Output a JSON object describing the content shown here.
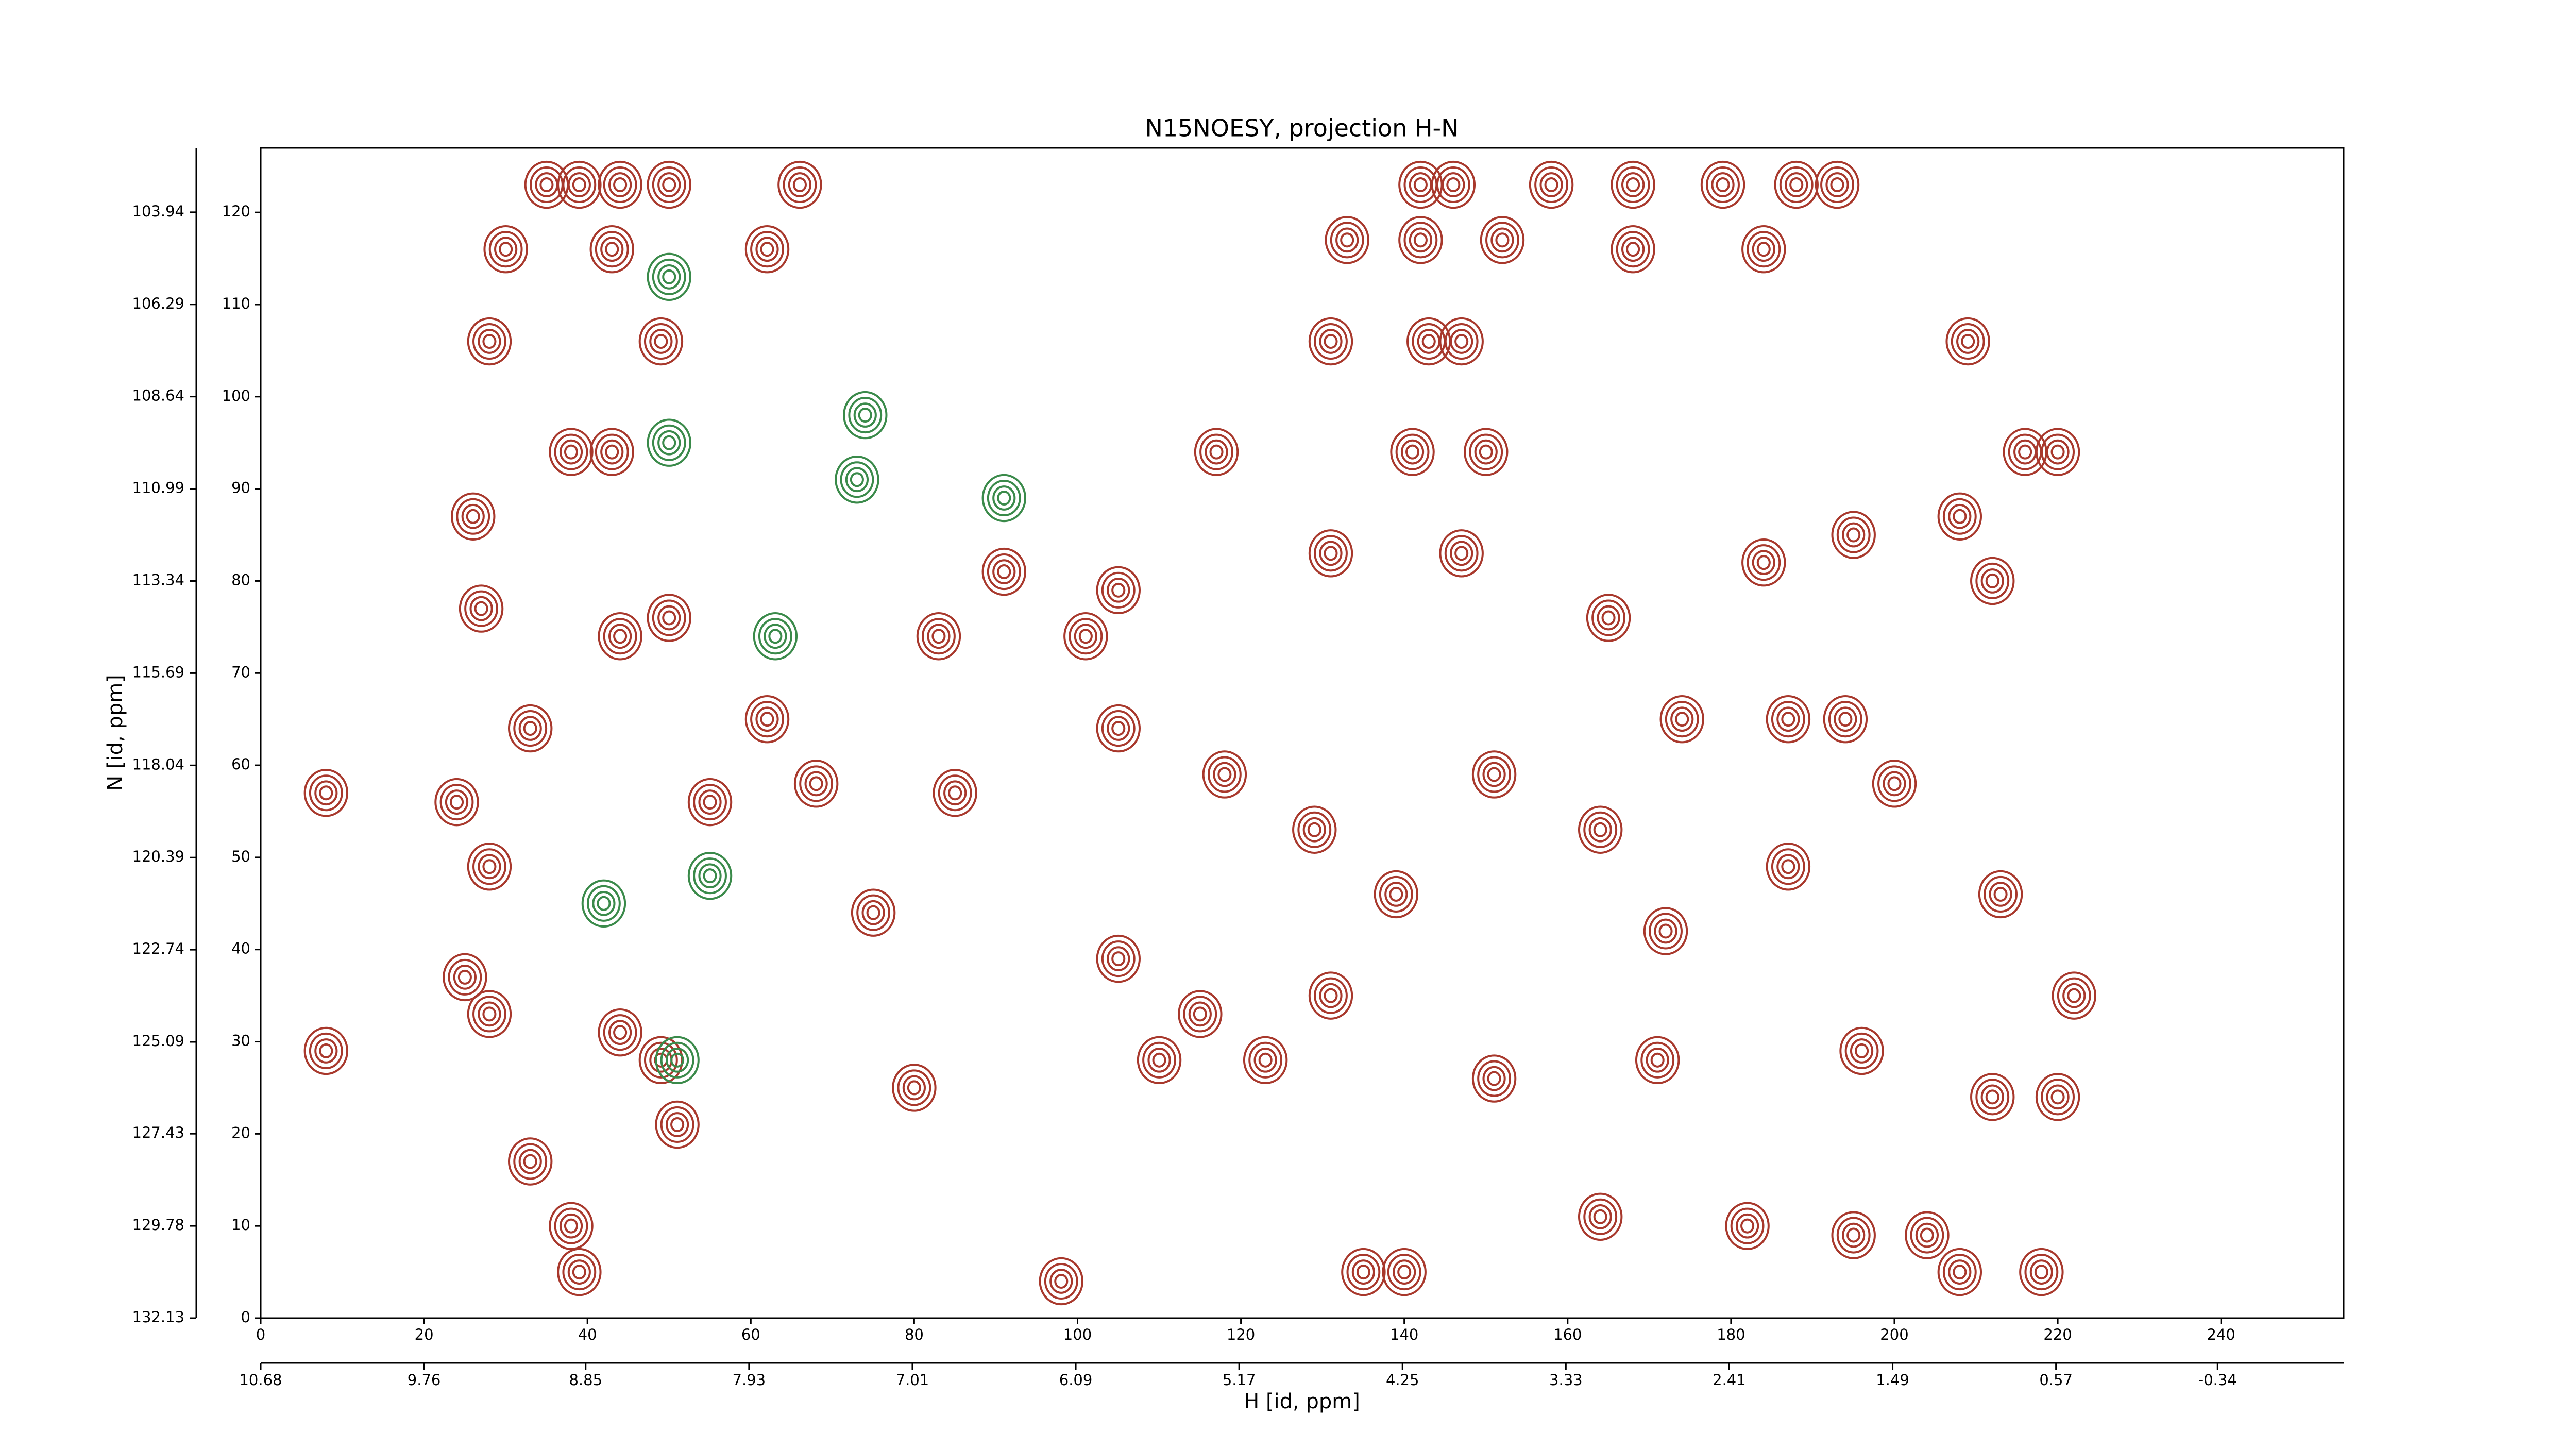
{
  "chart_data": {
    "type": "contour",
    "title": "N15NOESY, projection H-N",
    "x_label": "H [id, ppm]",
    "y_label": "N [id, ppm]",
    "xlim": [
      0,
      255
    ],
    "xticks": [
      0,
      20,
      40,
      60,
      80,
      100,
      120,
      140,
      160,
      180,
      200,
      220,
      240
    ],
    "ylim": [
      0,
      127
    ],
    "yticks": [
      0,
      10,
      20,
      30,
      40,
      50,
      60,
      70,
      80,
      90,
      100,
      110,
      120
    ],
    "x2lim": [
      10.68,
      -1.05
    ],
    "x2ticks": [
      10.68,
      9.76,
      8.85,
      7.93,
      7.01,
      6.09,
      5.17,
      4.25,
      3.33,
      2.41,
      1.49,
      0.57,
      -0.34
    ],
    "y2lim": [
      132.13,
      102.3
    ],
    "y2ticks": [
      103.94,
      106.29,
      108.64,
      110.99,
      113.34,
      115.69,
      118.04,
      120.39,
      122.74,
      125.09,
      127.43,
      129.78,
      132.13
    ],
    "series": [
      {
        "color": "#a8382c",
        "x": [
          35,
          39,
          44,
          50,
          66,
          142,
          146,
          158,
          168,
          179,
          188,
          193,
          30,
          43,
          62,
          133,
          142,
          152,
          168,
          184,
          28,
          49,
          131,
          143,
          147,
          209,
          38,
          43,
          117,
          141,
          150,
          216,
          220,
          26,
          208,
          91,
          105,
          27,
          44,
          50,
          83,
          101,
          33,
          62,
          105,
          174,
          187,
          194,
          24,
          8,
          55,
          68,
          85,
          28,
          75,
          105,
          25,
          28,
          44,
          49,
          8,
          115,
          110,
          80,
          51,
          33,
          38,
          164,
          182,
          39,
          135,
          140,
          208,
          218,
          195,
          204,
          118,
          129,
          139,
          151,
          164,
          172,
          187,
          200,
          213,
          222,
          196,
          171,
          151,
          131,
          123,
          212,
          220,
          131,
          147,
          165,
          184,
          195,
          212,
          98
        ],
        "y": [
          123,
          123,
          123,
          123,
          123,
          123,
          123,
          123,
          123,
          123,
          123,
          123,
          116,
          116,
          116,
          117,
          117,
          117,
          116,
          116,
          106,
          106,
          106,
          106,
          106,
          106,
          94,
          94,
          94,
          94,
          94,
          94,
          94,
          87,
          87,
          81,
          79,
          77,
          74,
          76,
          74,
          74,
          64,
          65,
          64,
          65,
          65,
          65,
          56,
          57,
          56,
          58,
          57,
          49,
          44,
          39,
          37,
          33,
          31,
          28,
          29,
          33,
          28,
          25,
          21,
          17,
          10,
          11,
          10,
          5,
          5,
          5,
          5,
          5,
          9,
          9,
          59,
          53,
          46,
          59,
          53,
          42,
          49,
          58,
          46,
          35,
          29,
          28,
          26,
          35,
          28,
          24,
          24,
          83,
          83,
          76,
          82,
          85,
          80,
          4
        ]
      },
      {
        "color": "#3a8a4a",
        "x": [
          74,
          50,
          63,
          55,
          42,
          51,
          73,
          91,
          50
        ],
        "y": [
          98,
          95,
          74,
          48,
          45,
          28,
          91,
          89,
          113
        ]
      }
    ]
  }
}
